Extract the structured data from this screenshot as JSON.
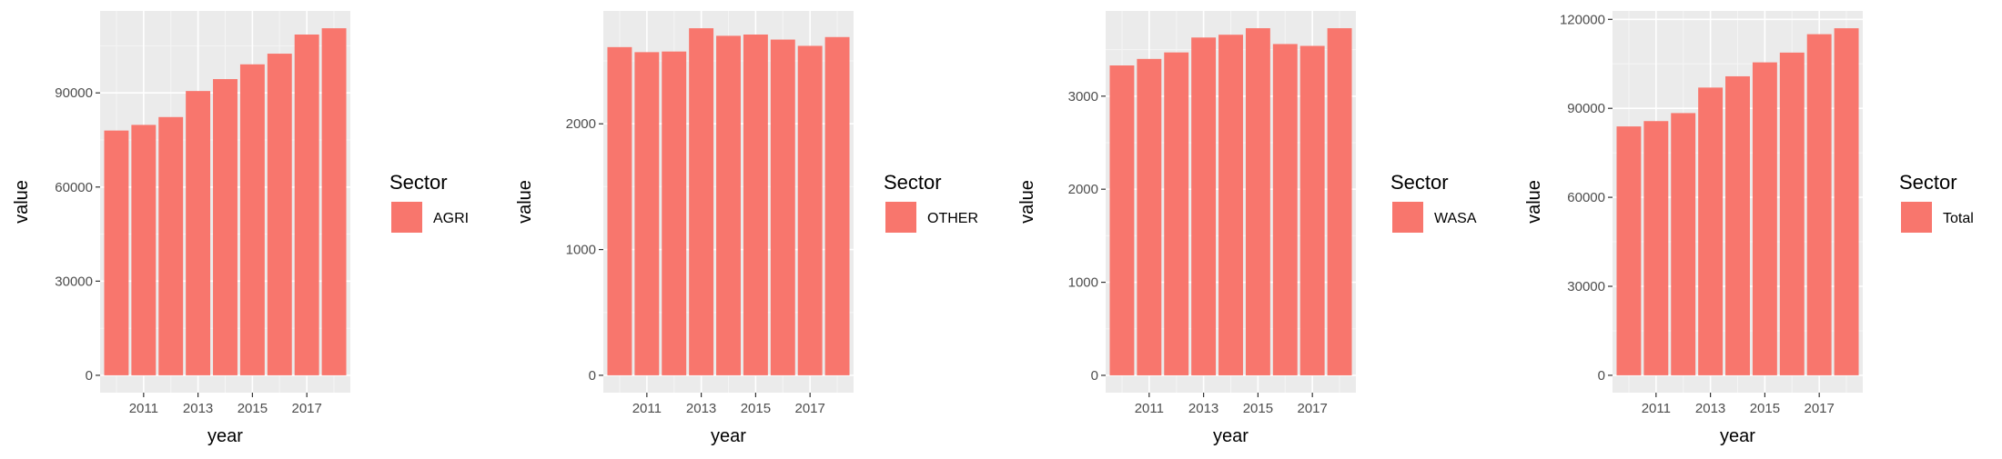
{
  "colors": {
    "bar": "#F8766D",
    "panel_bg": "#EBEBEB",
    "grid_major": "#FFFFFF",
    "grid_minor": "#F5F5F5",
    "tick_text": "#4D4D4D"
  },
  "chart_data": [
    {
      "type": "bar",
      "x": [
        2010,
        2011,
        2012,
        2013,
        2014,
        2015,
        2016,
        2017,
        2018
      ],
      "values": [
        78000,
        79800,
        82300,
        90600,
        94400,
        99100,
        102500,
        108600,
        110600
      ],
      "xlabel": "year",
      "ylabel": "value",
      "xticks": [
        2011,
        2013,
        2015,
        2017
      ],
      "xtick_labels": [
        "2011",
        "2013",
        "2015",
        "2017"
      ],
      "yticks": [
        0,
        30000,
        60000,
        90000
      ],
      "ytick_labels": [
        "0",
        "30000",
        "60000",
        "90000"
      ],
      "ylim": [
        -5530,
        116130
      ],
      "legend": {
        "title": "Sector",
        "label": "AGRI",
        "position": "right"
      },
      "grid": true
    },
    {
      "type": "bar",
      "x": [
        2010,
        2011,
        2012,
        2013,
        2014,
        2015,
        2016,
        2017,
        2018
      ],
      "values": [
        2610,
        2570,
        2575,
        2760,
        2700,
        2710,
        2670,
        2620,
        2690
      ],
      "xlabel": "year",
      "ylabel": "value",
      "xticks": [
        2011,
        2013,
        2015,
        2017
      ],
      "xtick_labels": [
        "2011",
        "2013",
        "2015",
        "2017"
      ],
      "yticks": [
        0,
        1000,
        2000
      ],
      "ytick_labels": [
        "0",
        "1000",
        "2000"
      ],
      "ylim": [
        -138,
        2898
      ],
      "legend": {
        "title": "Sector",
        "label": "OTHER",
        "position": "right"
      },
      "grid": true
    },
    {
      "type": "bar",
      "x": [
        2010,
        2011,
        2012,
        2013,
        2014,
        2015,
        2016,
        2017,
        2018
      ],
      "values": [
        3330,
        3400,
        3470,
        3630,
        3660,
        3730,
        3560,
        3540,
        3730
      ],
      "xlabel": "year",
      "ylabel": "value",
      "xticks": [
        2011,
        2013,
        2015,
        2017
      ],
      "xtick_labels": [
        "2011",
        "2013",
        "2015",
        "2017"
      ],
      "yticks": [
        0,
        1000,
        2000,
        3000
      ],
      "ytick_labels": [
        "0",
        "1000",
        "2000",
        "3000"
      ],
      "ylim": [
        -186,
        3916
      ],
      "legend": {
        "title": "Sector",
        "label": "WASA",
        "position": "right"
      },
      "grid": true
    },
    {
      "type": "bar",
      "x": [
        2010,
        2011,
        2012,
        2013,
        2014,
        2015,
        2016,
        2017,
        2018
      ],
      "values": [
        83900,
        85700,
        88400,
        97000,
        100800,
        105500,
        108800,
        115000,
        117000
      ],
      "xlabel": "year",
      "ylabel": "value",
      "xticks": [
        2011,
        2013,
        2015,
        2017
      ],
      "xtick_labels": [
        "2011",
        "2013",
        "2015",
        "2017"
      ],
      "yticks": [
        0,
        30000,
        60000,
        90000,
        120000
      ],
      "ytick_labels": [
        "0",
        "30000",
        "60000",
        "90000",
        "120000"
      ],
      "ylim": [
        -5850,
        122850
      ],
      "legend": {
        "title": "Sector",
        "label": "Total",
        "position": "right"
      },
      "grid": true
    }
  ]
}
